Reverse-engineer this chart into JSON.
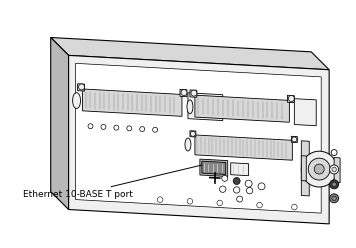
{
  "label_text": "Ethernet 10-BASE T port",
  "bg_color": "#ffffff",
  "line_color": "#000000",
  "fill_white": "#ffffff",
  "fill_light": "#f0f0f0",
  "fill_mid": "#d8d8d8",
  "fill_dark": "#b8b8b8",
  "fill_darker": "#888888",
  "fill_black": "#404040",
  "lw_main": 0.8,
  "lw_thin": 0.4,
  "font_size": 6.5
}
